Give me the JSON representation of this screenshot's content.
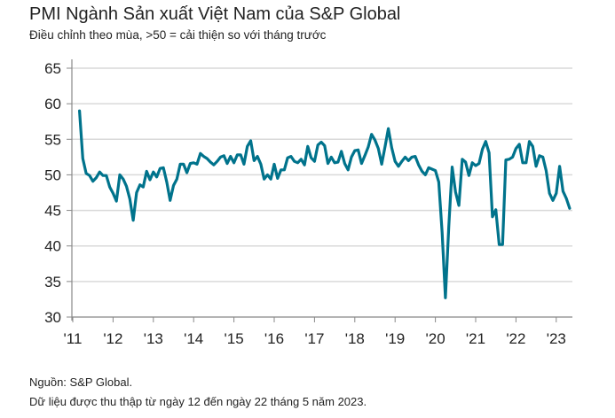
{
  "chart_data": {
    "type": "line",
    "title": "PMI Ngành Sản xuất Việt Nam của S&P Global",
    "subtitle": "Điều chỉnh theo mùa, >50 = cải thiện so với tháng trước",
    "xlabel": "",
    "ylabel": "",
    "ylim": [
      30,
      65
    ],
    "yticks": [
      30,
      35,
      40,
      45,
      50,
      55,
      60,
      65
    ],
    "xticks": [
      "'11",
      "'12",
      "'13",
      "'14",
      "'15",
      "'16",
      "'17",
      "'18",
      "'19",
      "'20",
      "'21",
      "'22",
      "'23"
    ],
    "grid": true,
    "start": "2011-03",
    "series": [
      {
        "name": "PMI",
        "color": "#00738c",
        "values": [
          59.0,
          52.3,
          50.2,
          49.9,
          49.1,
          49.6,
          50.4,
          49.9,
          49.9,
          48.3,
          47.4,
          46.3,
          50.0,
          49.4,
          48.4,
          46.6,
          43.6,
          47.5,
          48.6,
          48.3,
          50.5,
          49.3,
          50.4,
          49.7,
          50.9,
          51.0,
          49.0,
          46.4,
          48.5,
          49.4,
          51.5,
          51.5,
          50.3,
          51.6,
          51.7,
          51.5,
          53.0,
          52.6,
          52.3,
          51.8,
          51.4,
          51.9,
          52.5,
          52.7,
          51.6,
          52.6,
          51.7,
          52.8,
          52.8,
          51.5,
          54.0,
          54.8,
          52.0,
          52.6,
          51.5,
          49.4,
          50.0,
          49.4,
          51.5,
          49.5,
          50.7,
          50.7,
          52.4,
          52.6,
          51.9,
          51.7,
          52.2,
          51.4,
          54.0,
          52.4,
          51.9,
          54.2,
          54.6,
          54.1,
          51.6,
          52.5,
          51.7,
          51.8,
          53.3,
          51.6,
          50.7,
          52.5,
          53.4,
          53.5,
          51.6,
          52.7,
          53.9,
          55.7,
          54.9,
          53.7,
          51.5,
          53.9,
          56.5,
          53.8,
          51.9,
          51.2,
          51.9,
          52.5,
          52.0,
          52.5,
          52.6,
          51.4,
          50.5,
          50.0,
          51.0,
          50.8,
          50.6,
          49.0,
          41.9,
          32.7,
          42.7,
          51.1,
          47.6,
          45.7,
          52.2,
          51.8,
          49.9,
          51.7,
          51.3,
          51.6,
          53.6,
          54.7,
          53.1,
          44.1,
          45.1,
          40.2,
          40.2,
          52.1,
          52.2,
          52.5,
          53.7,
          54.3,
          51.7,
          51.7,
          54.7,
          54.0,
          51.2,
          52.7,
          52.5,
          50.6,
          47.4,
          46.4,
          47.4,
          51.2,
          47.7,
          46.7,
          45.3
        ]
      }
    ]
  },
  "footer": {
    "source": "Nguồn: S&P Global.",
    "note": "Dữ liệu được thu thập từ ngày 12 đến ngày 22 tháng 5 năm 2023."
  }
}
